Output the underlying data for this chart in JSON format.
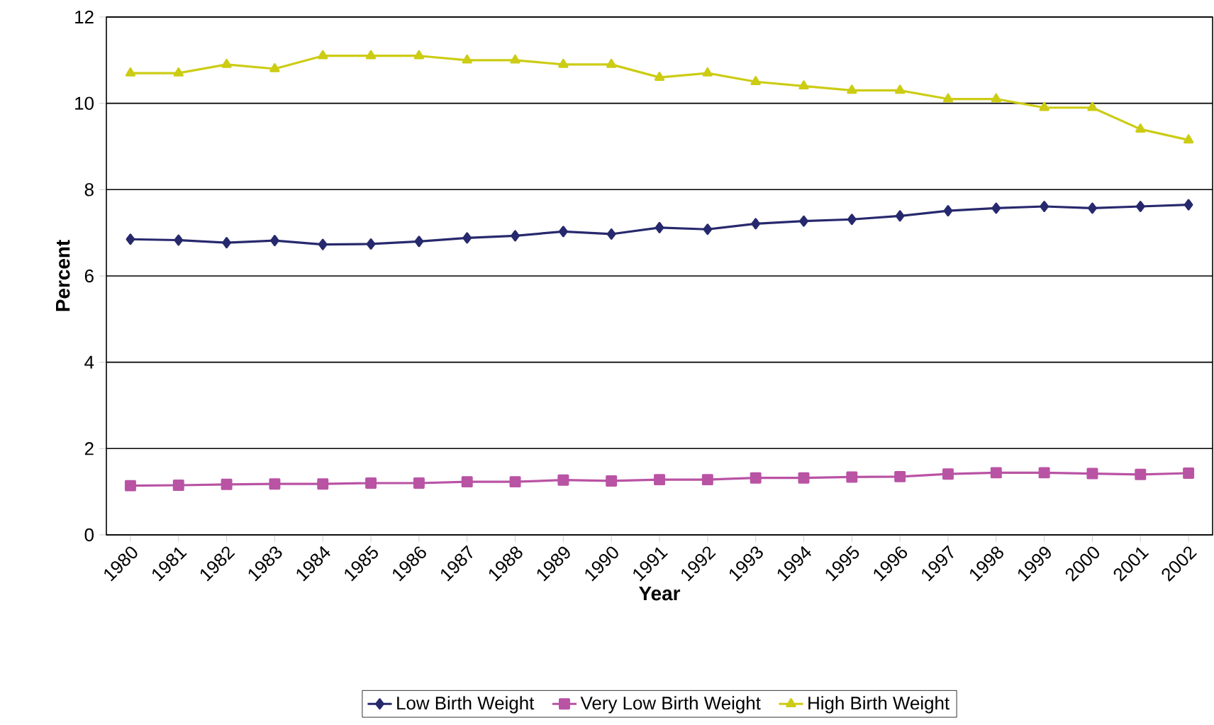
{
  "chart_data": {
    "type": "line",
    "xlabel": "Year",
    "ylabel": "Percent",
    "categories": [
      "1980",
      "1981",
      "1982",
      "1983",
      "1984",
      "1985",
      "1986",
      "1987",
      "1988",
      "1989",
      "1990",
      "1991",
      "1992",
      "1993",
      "1994",
      "1995",
      "1996",
      "1997",
      "1998",
      "1999",
      "2000",
      "2001",
      "2002"
    ],
    "series": [
      {
        "name": "Low Birth Weight",
        "color": "#27296d",
        "marker": "diamond",
        "values": [
          6.85,
          6.83,
          6.77,
          6.82,
          6.73,
          6.74,
          6.8,
          6.88,
          6.93,
          7.03,
          6.97,
          7.12,
          7.08,
          7.21,
          7.27,
          7.31,
          7.39,
          7.51,
          7.57,
          7.61,
          7.57,
          7.61,
          7.65
        ]
      },
      {
        "name": "Very Low Birth Weight",
        "color": "#b953a4",
        "marker": "square",
        "values": [
          1.14,
          1.15,
          1.17,
          1.18,
          1.18,
          1.2,
          1.2,
          1.23,
          1.23,
          1.27,
          1.25,
          1.28,
          1.28,
          1.32,
          1.32,
          1.34,
          1.35,
          1.41,
          1.44,
          1.44,
          1.42,
          1.4,
          1.43
        ]
      },
      {
        "name": "High Birth Weight",
        "color": "#cccc14",
        "marker": "triangle",
        "values": [
          10.7,
          10.7,
          10.9,
          10.8,
          11.1,
          11.1,
          11.1,
          11.0,
          11.0,
          10.9,
          10.9,
          10.6,
          10.7,
          10.5,
          10.4,
          10.3,
          10.3,
          10.1,
          10.1,
          9.9,
          9.9,
          9.4,
          9.15
        ]
      }
    ],
    "ylim": [
      0,
      12
    ],
    "yticks": [
      0,
      2,
      4,
      6,
      8,
      10,
      12
    ],
    "grid": "y",
    "legend": "bottom",
    "line_style": "solid"
  }
}
